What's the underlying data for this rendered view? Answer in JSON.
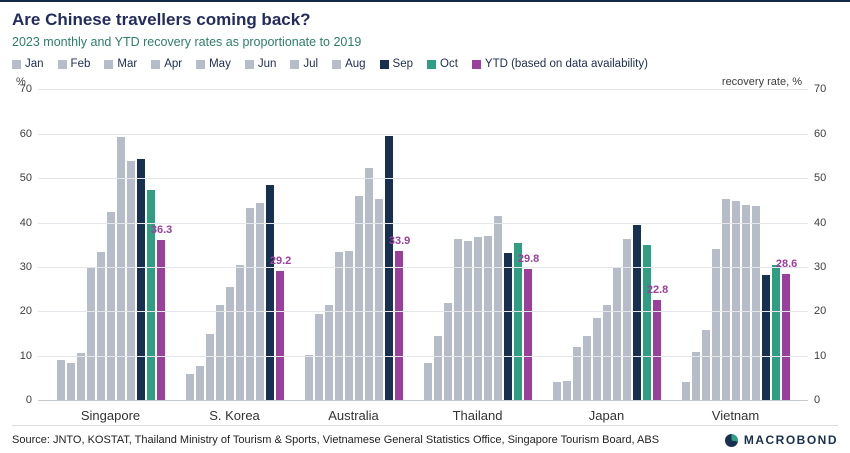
{
  "header": {
    "title": "Are Chinese travellers coming back?",
    "subtitle": "2023 monthly and YTD recovery rates as proportionate to 2019"
  },
  "legend": [
    {
      "label": "Jan",
      "color": "#b6bdc9"
    },
    {
      "label": "Feb",
      "color": "#b6bdc9"
    },
    {
      "label": "Mar",
      "color": "#b6bdc9"
    },
    {
      "label": "Apr",
      "color": "#b6bdc9"
    },
    {
      "label": "May",
      "color": "#b6bdc9"
    },
    {
      "label": "Jun",
      "color": "#b6bdc9"
    },
    {
      "label": "Jul",
      "color": "#b6bdc9"
    },
    {
      "label": "Aug",
      "color": "#b6bdc9"
    },
    {
      "label": "Sep",
      "color": "#17304f"
    },
    {
      "label": "Oct",
      "color": "#2f9e82"
    },
    {
      "label": "YTD (based on data availability)",
      "color": "#9a3f9c"
    }
  ],
  "axes": {
    "left_unit": "%",
    "right_unit": "recovery rate, %",
    "ticks": [
      0,
      10,
      20,
      30,
      40,
      50,
      60,
      70
    ],
    "max": 70
  },
  "chart_data": {
    "type": "bar",
    "title": "Are Chinese travellers coming back?",
    "subtitle": "2023 monthly and YTD recovery rates as proportionate to 2019",
    "ylabel": "recovery rate, %",
    "ylim": [
      0,
      70
    ],
    "grid": "horizontal",
    "legend_position": "top",
    "month_labels": [
      "Jan",
      "Feb",
      "Mar",
      "Apr",
      "May",
      "Jun",
      "Jul",
      "Aug",
      "Sep",
      "Oct"
    ],
    "categories": [
      "Singapore",
      "S. Korea",
      "Australia",
      "Thailand",
      "Japan",
      "Vietnam"
    ],
    "series": [
      {
        "country": "Singapore",
        "values": [
          9.3,
          8.6,
          10.8,
          30.2,
          33.6,
          42.7,
          59.5,
          54.0,
          54.6,
          47.5
        ],
        "ytd": 36.3
      },
      {
        "country": "S. Korea",
        "values": [
          6.2,
          8.0,
          15.2,
          21.7,
          25.6,
          30.6,
          43.6,
          44.6,
          48.7,
          null
        ],
        "ytd": 29.2
      },
      {
        "country": "Australia",
        "values": [
          10.4,
          19.6,
          21.7,
          33.5,
          33.9,
          46.2,
          52.6,
          45.6,
          59.7,
          null
        ],
        "ytd": 33.9
      },
      {
        "country": "Thailand",
        "values": [
          8.6,
          14.6,
          22.0,
          36.5,
          36.0,
          37.0,
          37.3,
          41.6,
          33.4,
          35.5
        ],
        "ytd": 29.8
      },
      {
        "country": "Japan",
        "values": [
          4.2,
          4.6,
          12.1,
          14.6,
          18.6,
          21.7,
          30.0,
          36.4,
          39.6,
          35.1
        ],
        "ytd": 22.8
      },
      {
        "country": "Vietnam",
        "values": [
          4.3,
          11.1,
          16.0,
          34.2,
          45.6,
          45.1,
          44.2,
          44.0,
          28.5,
          30.6
        ],
        "ytd": 28.6
      }
    ]
  },
  "colors": {
    "month_default": "#b6bdc9",
    "sep": "#17304f",
    "oct": "#2f9e82",
    "ytd": "#9a3f9c",
    "title": "#222d5e",
    "subtitle": "#2e7d6b",
    "grid": "#e4e6ea",
    "axis_text": "#3d3d3d",
    "accent_top": "#14294a"
  },
  "footer": {
    "source": "Source: JNTO, KOSTAT, Thailand Ministry of Tourism & Sports, Vietnamese General Statistics Office, Singapore Tourism Board, ABS",
    "brand": "MACROBOND"
  }
}
